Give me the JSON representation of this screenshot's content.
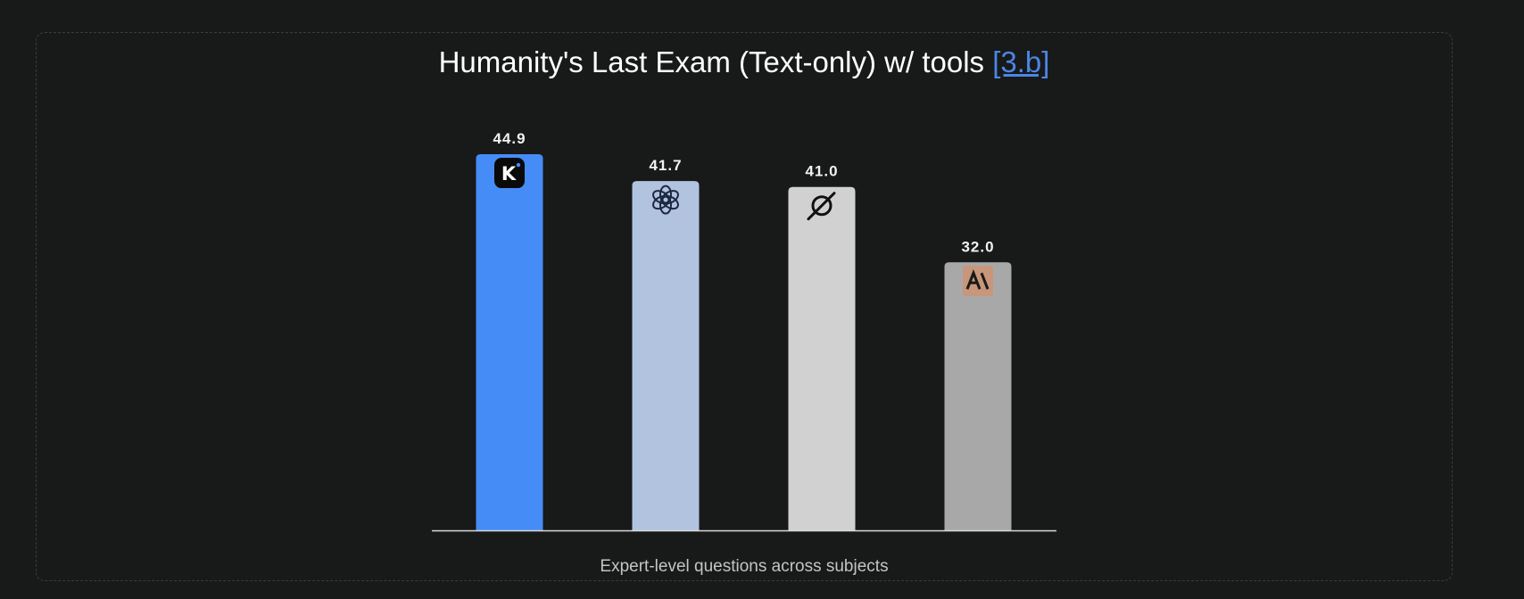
{
  "chart_data": {
    "type": "bar",
    "title": "Humanity's Last Exam (Text-only) w/ tools",
    "title_reference": "[3.b]",
    "subtitle": "Expert-level questions across subjects",
    "categories": [
      "",
      "",
      "",
      ""
    ],
    "values": [
      44.9,
      41.7,
      41.0,
      32.0
    ],
    "value_labels": [
      "44.9",
      "41.7",
      "41.0",
      "32.0"
    ],
    "bar_colors": [
      "#468cf7",
      "#b2c3df",
      "#d1d1d1",
      "#a8a8a8"
    ],
    "icons": [
      "kimi-logo-icon",
      "openai-logo-icon",
      "grok-logo-icon",
      "anthropic-logo-icon"
    ],
    "ylim": [
      0,
      46.5
    ],
    "grid": false,
    "legend": "none"
  },
  "colors": {
    "background": "#181919",
    "title_text": "#ffffff",
    "reference_link": "#4b86e6",
    "subtitle_text": "#c4c4c4",
    "axis_line": "#d9d9d9"
  }
}
